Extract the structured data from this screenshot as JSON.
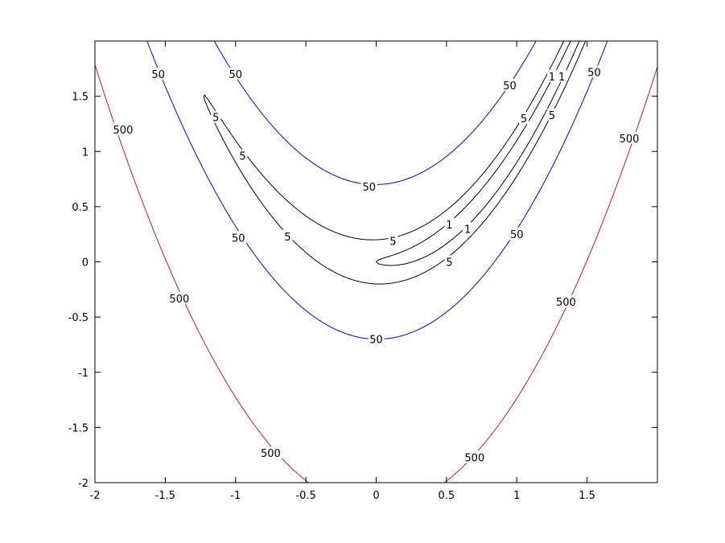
{
  "chart_data": {
    "type": "contour",
    "function": "rosenbrock",
    "title": "",
    "xlabel": "",
    "ylabel": "",
    "xlim": [
      -2,
      2
    ],
    "ylim": [
      -2,
      2
    ],
    "x_ticks": [
      -2,
      -1.5,
      -1,
      -0.5,
      0,
      0.5,
      1,
      1.5
    ],
    "y_ticks": [
      -2,
      -1.5,
      -1,
      -0.5,
      0,
      0.5,
      1,
      1.5
    ],
    "x_tick_labels": [
      "-2",
      "-1.5",
      "-1",
      "-0.5",
      "0",
      "0.5",
      "1",
      "1.5"
    ],
    "y_tick_labels": [
      "-2",
      "-1.5",
      "-1",
      "-0.5",
      "0",
      "0.5",
      "1",
      "1.5"
    ],
    "grid": false,
    "levels": [
      {
        "value": 1,
        "label": "1",
        "color": "#000000"
      },
      {
        "value": 5,
        "label": "5",
        "color": "#000000"
      },
      {
        "value": 50,
        "label": "50",
        "color": "#0000cc"
      },
      {
        "value": 500,
        "label": "500",
        "color": "#b02020"
      }
    ],
    "contour_labels": [
      {
        "text": "50",
        "x": -1.55,
        "y": 1.7
      },
      {
        "text": "50",
        "x": -1.0,
        "y": 1.7
      },
      {
        "text": "50",
        "x": 0.95,
        "y": 1.6
      },
      {
        "text": "50",
        "x": 1.55,
        "y": 1.72
      },
      {
        "text": "50",
        "x": -0.05,
        "y": 0.68
      },
      {
        "text": "50",
        "x": -0.98,
        "y": 0.22
      },
      {
        "text": "50",
        "x": 1.0,
        "y": 0.25
      },
      {
        "text": "50",
        "x": 0.0,
        "y": -0.7
      },
      {
        "text": "5",
        "x": -1.14,
        "y": 1.31
      },
      {
        "text": "5",
        "x": -0.95,
        "y": 0.96
      },
      {
        "text": "5",
        "x": -0.63,
        "y": 0.23
      },
      {
        "text": "5",
        "x": 0.12,
        "y": 0.19
      },
      {
        "text": "5",
        "x": 0.52,
        "y": 0.0
      },
      {
        "text": "5",
        "x": 1.05,
        "y": 1.3
      },
      {
        "text": "5",
        "x": 1.25,
        "y": 1.33
      },
      {
        "text": "1",
        "x": 0.52,
        "y": 0.34
      },
      {
        "text": "1",
        "x": 0.65,
        "y": 0.3
      },
      {
        "text": "1",
        "x": 1.25,
        "y": 1.68
      },
      {
        "text": "1",
        "x": 1.32,
        "y": 1.68
      },
      {
        "text": "500",
        "x": -1.8,
        "y": 1.2
      },
      {
        "text": "500",
        "x": 1.8,
        "y": 1.12
      },
      {
        "text": "500",
        "x": -1.4,
        "y": -0.33
      },
      {
        "text": "500",
        "x": 1.35,
        "y": -0.36
      },
      {
        "text": "500",
        "x": -0.75,
        "y": -1.73
      },
      {
        "text": "500",
        "x": 0.7,
        "y": -1.77
      }
    ]
  }
}
